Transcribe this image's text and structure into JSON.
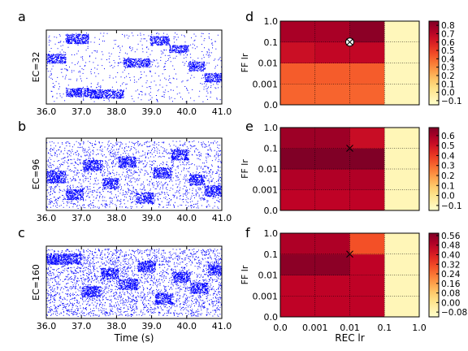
{
  "chart_data": [
    {
      "type": "scatter",
      "panel_label": "a",
      "ylabel": "EC=32",
      "xlabel": "",
      "xlim": [
        36.0,
        41.0
      ],
      "xticks": [
        "36.0",
        "37.0",
        "38.0",
        "39.0",
        "40.0",
        "41.0"
      ],
      "series_color": "#0000ff",
      "segments": [
        {
          "x": [
            36.0,
            36.55
          ],
          "band_y": [
            0.55,
            0.68
          ]
        },
        {
          "x": [
            36.55,
            37.2
          ],
          "band_y": [
            0.82,
            0.95
          ]
        },
        {
          "x": [
            36.55,
            37.2
          ],
          "band_y": [
            0.1,
            0.22
          ]
        },
        {
          "x": [
            37.2,
            38.2
          ],
          "band_y": [
            0.08,
            0.2
          ]
        },
        {
          "x": [
            38.2,
            38.95
          ],
          "band_y": [
            0.5,
            0.62
          ]
        },
        {
          "x": [
            38.95,
            39.5
          ],
          "band_y": [
            0.8,
            0.92
          ]
        },
        {
          "x": [
            39.5,
            40.05
          ],
          "band_y": [
            0.7,
            0.8
          ]
        },
        {
          "x": [
            40.05,
            40.5
          ],
          "band_y": [
            0.45,
            0.58
          ]
        },
        {
          "x": [
            40.5,
            41.0
          ],
          "band_y": [
            0.3,
            0.42
          ]
        }
      ]
    },
    {
      "type": "scatter",
      "panel_label": "b",
      "ylabel": "EC=96",
      "xlabel": "",
      "xlim": [
        36.0,
        41.0
      ],
      "xticks": [
        "36.0",
        "37.0",
        "38.0",
        "39.0",
        "40.0",
        "41.0"
      ],
      "series_color": "#0000ff",
      "segments": [
        {
          "x": [
            36.0,
            36.55
          ],
          "band_y": [
            0.38,
            0.55
          ]
        },
        {
          "x": [
            36.55,
            37.05
          ],
          "band_y": [
            0.15,
            0.3
          ]
        },
        {
          "x": [
            37.05,
            37.6
          ],
          "band_y": [
            0.55,
            0.7
          ]
        },
        {
          "x": [
            37.6,
            38.05
          ],
          "band_y": [
            0.3,
            0.45
          ]
        },
        {
          "x": [
            38.05,
            38.55
          ],
          "band_y": [
            0.6,
            0.75
          ]
        },
        {
          "x": [
            38.55,
            39.05
          ],
          "band_y": [
            0.1,
            0.25
          ]
        },
        {
          "x": [
            39.05,
            39.55
          ],
          "band_y": [
            0.45,
            0.6
          ]
        },
        {
          "x": [
            39.55,
            40.05
          ],
          "band_y": [
            0.7,
            0.85
          ]
        },
        {
          "x": [
            40.05,
            40.5
          ],
          "band_y": [
            0.35,
            0.5
          ]
        },
        {
          "x": [
            40.5,
            41.0
          ],
          "band_y": [
            0.2,
            0.35
          ]
        }
      ]
    },
    {
      "type": "scatter",
      "panel_label": "c",
      "ylabel": "EC=160",
      "xlabel": "Time (s)",
      "xlim": [
        36.0,
        41.0
      ],
      "xticks": [
        "36.0",
        "37.0",
        "38.0",
        "39.0",
        "40.0",
        "41.0"
      ],
      "series_color": "#0000ff",
      "segments": [
        {
          "x": [
            36.0,
            37.0
          ],
          "band_y": [
            0.75,
            0.9
          ]
        },
        {
          "x": [
            37.0,
            37.55
          ],
          "band_y": [
            0.3,
            0.45
          ]
        },
        {
          "x": [
            37.55,
            38.05
          ],
          "band_y": [
            0.55,
            0.7
          ]
        },
        {
          "x": [
            38.05,
            38.6
          ],
          "band_y": [
            0.4,
            0.55
          ]
        },
        {
          "x": [
            38.6,
            39.1
          ],
          "band_y": [
            0.65,
            0.8
          ]
        },
        {
          "x": [
            39.1,
            39.6
          ],
          "band_y": [
            0.2,
            0.35
          ]
        },
        {
          "x": [
            39.6,
            40.1
          ],
          "band_y": [
            0.5,
            0.65
          ]
        },
        {
          "x": [
            40.1,
            40.6
          ],
          "band_y": [
            0.35,
            0.5
          ]
        },
        {
          "x": [
            40.6,
            41.0
          ],
          "band_y": [
            0.6,
            0.75
          ]
        }
      ]
    },
    {
      "type": "heatmap",
      "panel_label": "d",
      "ylabel": "FF lr",
      "xlabel": "",
      "x_categories": [
        "0.0",
        "0.001",
        "0.01",
        "0.1",
        "1.0"
      ],
      "y_categories": [
        "0.0",
        "0.001",
        "0.01",
        "0.1",
        "1.0"
      ],
      "values": [
        [
          0.4,
          0.4,
          0.4,
          -0.1
        ],
        [
          0.42,
          0.42,
          0.42,
          -0.1
        ],
        [
          0.65,
          0.68,
          0.68,
          -0.1
        ],
        [
          0.75,
          0.75,
          0.82,
          -0.1
        ]
      ],
      "vmin": -0.15,
      "vmax": 0.85,
      "colorbar_ticks": [
        "0.8",
        "0.7",
        "0.6",
        "0.5",
        "0.4",
        "0.3",
        "0.2",
        "0.1",
        "0.0",
        "−0.1"
      ],
      "colorbar_values": [
        0.8,
        0.7,
        0.6,
        0.5,
        0.4,
        0.3,
        0.2,
        0.1,
        0.0,
        -0.1
      ],
      "marker": {
        "x": 0.01,
        "y": 0.1,
        "style": "circle-x"
      }
    },
    {
      "type": "heatmap",
      "panel_label": "e",
      "ylabel": "FF lr",
      "xlabel": "",
      "x_categories": [
        "0.0",
        "0.001",
        "0.01",
        "0.1",
        "1.0"
      ],
      "y_categories": [
        "0.0",
        "0.001",
        "0.01",
        "0.1",
        "1.0"
      ],
      "values": [
        [
          0.55,
          0.55,
          0.55,
          -0.1
        ],
        [
          0.58,
          0.58,
          0.58,
          -0.1
        ],
        [
          0.68,
          0.68,
          0.68,
          -0.1
        ],
        [
          0.62,
          0.62,
          0.52,
          -0.1
        ]
      ],
      "vmin": -0.15,
      "vmax": 0.68,
      "colorbar_ticks": [
        "0.6",
        "0.5",
        "0.4",
        "0.3",
        "0.2",
        "0.1",
        "0.0",
        "−0.1"
      ],
      "colorbar_values": [
        0.6,
        0.5,
        0.4,
        0.3,
        0.2,
        0.1,
        0.0,
        -0.1
      ],
      "marker": {
        "x": 0.01,
        "y": 0.1,
        "style": "x"
      }
    },
    {
      "type": "heatmap",
      "panel_label": "f",
      "ylabel": "FF lr",
      "xlabel": "REC lr",
      "x_categories": [
        "0.0",
        "0.001",
        "0.01",
        "0.1",
        "1.0"
      ],
      "y_categories": [
        "0.0",
        "0.001",
        "0.01",
        "0.1",
        "1.0"
      ],
      "values": [
        [
          0.47,
          0.47,
          0.47,
          -0.08
        ],
        [
          0.47,
          0.47,
          0.47,
          -0.08
        ],
        [
          0.56,
          0.56,
          0.47,
          -0.08
        ],
        [
          0.5,
          0.5,
          0.3,
          -0.08
        ]
      ],
      "vmin": -0.12,
      "vmax": 0.58,
      "colorbar_ticks": [
        "0.56",
        "0.48",
        "0.40",
        "0.32",
        "0.24",
        "0.16",
        "0.08",
        "0.00",
        "−0.08"
      ],
      "colorbar_values": [
        0.56,
        0.48,
        0.4,
        0.32,
        0.24,
        0.16,
        0.08,
        0.0,
        -0.08
      ],
      "marker": {
        "x": 0.01,
        "y": 0.1,
        "style": "x"
      }
    }
  ]
}
